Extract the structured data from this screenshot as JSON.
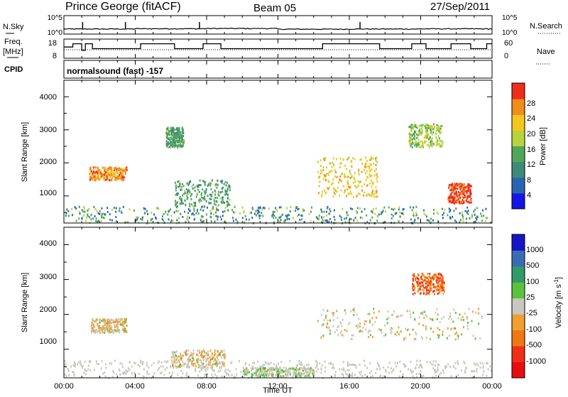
{
  "header": {
    "title": "Prince George (fitACF)",
    "beam": "Beam 05",
    "date": "27/Sep/2011"
  },
  "noise_panel": {
    "left_label": "N.Sky",
    "right_label": "N.Search",
    "left_ticks": [
      "10^5",
      "10^0"
    ],
    "right_ticks": [
      "10^5",
      "10^0"
    ]
  },
  "freq_panel": {
    "left_label_1": "Freq.",
    "left_label_2": "[MHz]",
    "right_label": "Nave",
    "left_ticks": [
      "18",
      "8"
    ],
    "right_ticks": [
      "60",
      "0"
    ]
  },
  "cpid_panel": {
    "label": "CPID",
    "text": "normalsound (fast) -157"
  },
  "x_axis": {
    "label": "Time UT",
    "ticks": [
      "00:00",
      "04:00",
      "08:00",
      "12:00",
      "16:00",
      "20:00",
      "00:00"
    ]
  },
  "y_axis": {
    "label": "Slant Range [km]",
    "ticks": [
      "1000",
      "2000",
      "3000",
      "4000"
    ]
  },
  "power_colorbar": {
    "label": "Power [dB]",
    "ticks": [
      "4",
      "8",
      "12",
      "16",
      "20",
      "24",
      "28"
    ],
    "colors": [
      "#1515e6",
      "#2a66b0",
      "#3e8a7a",
      "#52a65a",
      "#b7d43c",
      "#f2c81e",
      "#f28c1c",
      "#ee2d1c"
    ]
  },
  "velocity_colorbar": {
    "label": "Velocity [m s",
    "label_sup": "-1",
    "label_close": "]",
    "ticks": [
      "1000",
      "500",
      "100",
      "25",
      "-25",
      "-100",
      "-500",
      "-1000"
    ],
    "colors": [
      "#1515c8",
      "#3a6cb4",
      "#2f9a6a",
      "#5bc23c",
      "#c8c8c0",
      "#f0a030",
      "#ef7814",
      "#ee3018",
      "#e60e0e"
    ]
  },
  "chart_data": [
    {
      "type": "line",
      "title": "Prince George (fitACF)",
      "xlabel": "",
      "ylabel": "N.Sky",
      "y_scale": "log",
      "ylim": [
        1,
        100000
      ],
      "x": [
        "00:00",
        "04:00",
        "08:00",
        "12:00",
        "16:00",
        "20:00",
        "00:00"
      ],
      "series": [
        {
          "values": [
            7,
            9,
            11,
            6,
            7,
            8,
            7
          ]
        }
      ]
    },
    {
      "type": "line",
      "xlabel": "",
      "ylabel": "Freq. [MHz]",
      "ylim": [
        8,
        18
      ],
      "x_hours": [
        0,
        0.5,
        1.0,
        1.2,
        1.6,
        3.0,
        4.0,
        4.3,
        5.8,
        6.2,
        7.8,
        8.8,
        10.5,
        13.0,
        14.5,
        17.0,
        17.7,
        19.5,
        20.3,
        21.7,
        22.8,
        23.7
      ],
      "series": [
        {
          "name": "Freq.",
          "values": [
            14,
            16,
            12,
            16,
            13,
            13,
            13,
            16,
            16,
            13,
            16,
            13,
            13,
            13,
            16,
            16,
            13,
            16,
            13,
            16,
            13,
            16
          ]
        }
      ]
    },
    {
      "type": "heatmap",
      "xlabel": "Time UT",
      "ylabel": "Slant Range [km]",
      "zlabel": "Power [dB]",
      "ylim": [
        180,
        4500
      ],
      "zlim": [
        0,
        30
      ],
      "x_hours": [
        0,
        1,
        2,
        3,
        4,
        5,
        6,
        7,
        8,
        9,
        10,
        11,
        12,
        13,
        14,
        15,
        16,
        17,
        18,
        19,
        20,
        21,
        22,
        23
      ],
      "echo_regions": [
        {
          "hours": [
            1.4,
            3.5
          ],
          "range_km": [
            1500,
            1900
          ],
          "power_db": 24
        },
        {
          "hours": [
            5.7,
            6.7
          ],
          "range_km": [
            2500,
            3100
          ],
          "power_db": 12
        },
        {
          "hours": [
            6.2,
            9.3
          ],
          "range_km": [
            700,
            1500
          ],
          "power_db": 12
        },
        {
          "hours": [
            14.2,
            17.6
          ],
          "range_km": [
            1000,
            2200
          ],
          "power_db": 20
        },
        {
          "hours": [
            21.5,
            22.8
          ],
          "range_km": [
            800,
            1400
          ],
          "power_db": 28
        },
        {
          "hours": [
            19.3,
            21.2
          ],
          "range_km": [
            2500,
            3200
          ],
          "power_db": 16
        }
      ]
    },
    {
      "type": "heatmap",
      "xlabel": "Time UT",
      "ylabel": "Slant Range [km]",
      "zlabel": "Velocity [m s-1]",
      "ylim": [
        180,
        4500
      ],
      "zlim": [
        -1000,
        1000
      ],
      "x_hours": [
        0,
        1,
        2,
        3,
        4,
        5,
        6,
        7,
        8,
        9,
        10,
        11,
        12,
        13,
        14,
        15,
        16,
        17,
        18,
        19,
        20,
        21,
        22,
        23
      ],
      "echo_regions": [
        {
          "hours": [
            1.5,
            3.5
          ],
          "range_km": [
            1500,
            1900
          ],
          "velocity": -100
        },
        {
          "hours": [
            14.2,
            23.5
          ],
          "range_km": [
            1300,
            2200
          ],
          "velocity": 0
        },
        {
          "hours": [
            19.5,
            21.3
          ],
          "range_km": [
            2600,
            3200
          ],
          "velocity": -500
        },
        {
          "hours": [
            6.0,
            9.0
          ],
          "range_km": [
            500,
            1000
          ],
          "velocity": -100
        },
        {
          "hours": [
            10.0,
            14.0
          ],
          "range_km": [
            250,
            500
          ],
          "velocity": 100
        }
      ]
    }
  ]
}
